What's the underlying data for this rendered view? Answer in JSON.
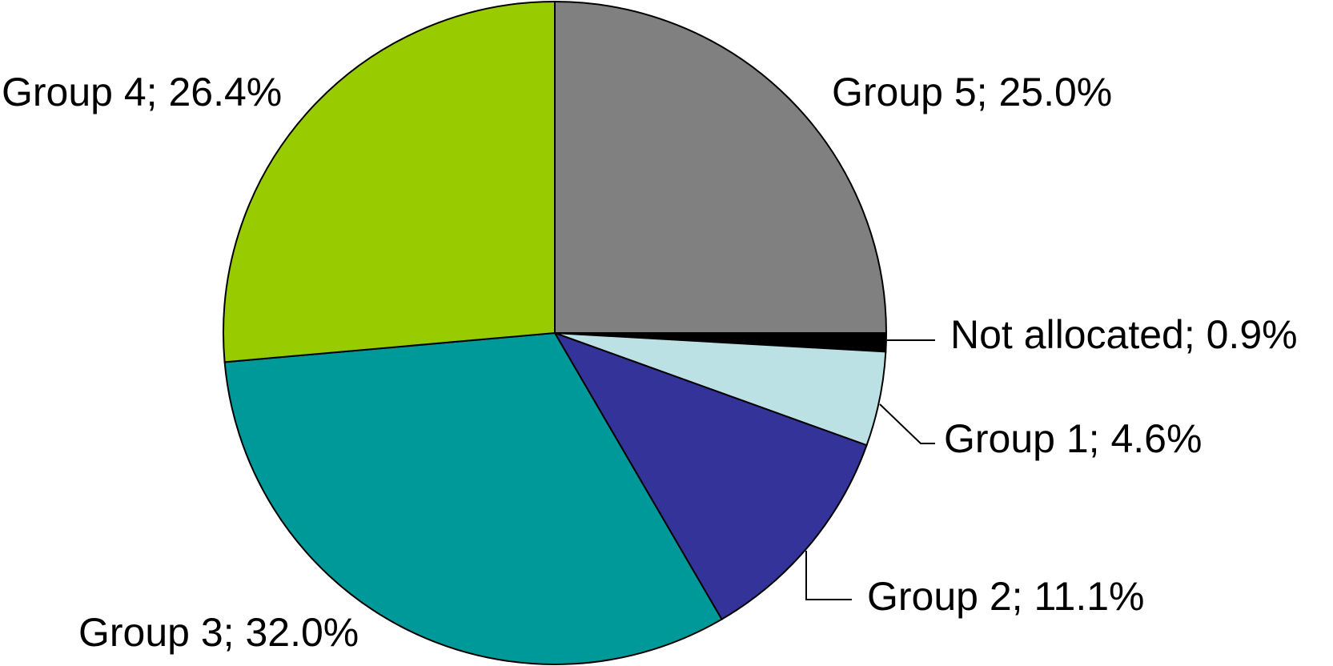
{
  "chart_data": {
    "type": "pie",
    "values": [
      25.0,
      0.9,
      4.6,
      11.1,
      32.0,
      26.4
    ],
    "value_labels": [
      "Group 5; 25.0%",
      "Not allocated; 0.9%",
      "Group 1; 4.6%",
      "Group 2; 11.1%",
      "Group 3; 32.0%",
      "Group 4; 26.4%"
    ],
    "colors": [
      "#808080",
      "#000000",
      "#bce1e4",
      "#333399",
      "#009999",
      "#99cc00"
    ]
  }
}
